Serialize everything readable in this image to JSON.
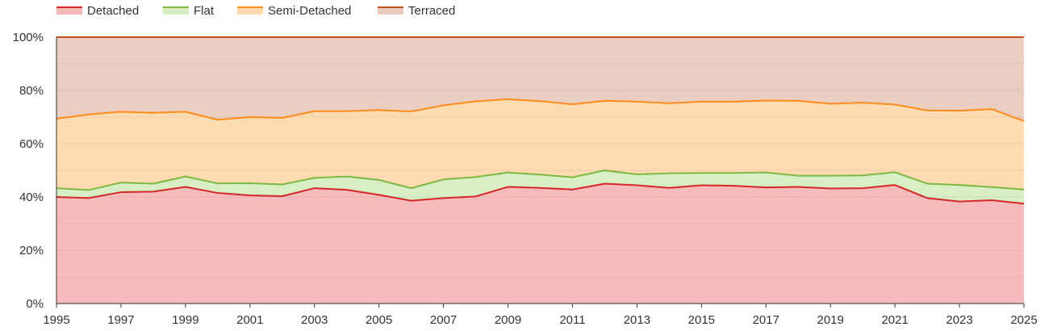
{
  "chart_data": {
    "type": "area",
    "stacked": true,
    "normalized_percent": true,
    "x": [
      1995,
      1996,
      1997,
      1998,
      1999,
      2000,
      2001,
      2002,
      2003,
      2004,
      2005,
      2006,
      2007,
      2008,
      2009,
      2010,
      2011,
      2012,
      2013,
      2014,
      2015,
      2016,
      2017,
      2018,
      2019,
      2020,
      2021,
      2022,
      2023,
      2024,
      2025
    ],
    "x_ticks": [
      "1995",
      "1997",
      "1999",
      "2001",
      "2003",
      "2005",
      "2007",
      "2009",
      "2011",
      "2013",
      "2015",
      "2017",
      "2019",
      "2021",
      "2023",
      "2025"
    ],
    "y_ticks": [
      "0%",
      "20%",
      "40%",
      "60%",
      "80%",
      "100%"
    ],
    "ylim": [
      0,
      100
    ],
    "xlim": [
      1995,
      2025
    ],
    "grid": true,
    "legend_position": "top-left",
    "title": "",
    "xlabel": "",
    "ylabel": "",
    "series": [
      {
        "name": "Detached",
        "line_color": "#d62728",
        "fill_color": "#f5b8b9",
        "values": [
          40.0,
          39.6,
          41.8,
          42.0,
          43.8,
          41.5,
          40.6,
          40.3,
          43.3,
          42.7,
          40.8,
          38.6,
          39.6,
          40.2,
          43.8,
          43.4,
          42.8,
          45.0,
          44.4,
          43.4,
          44.4,
          44.2,
          43.6,
          43.8,
          43.2,
          43.3,
          44.5,
          39.6,
          38.3,
          38.8,
          37.5
        ]
      },
      {
        "name": "Flat",
        "line_color": "#7cb842",
        "fill_color": "#d6edc2",
        "values": [
          3.3,
          3.0,
          3.6,
          3.0,
          3.9,
          3.6,
          4.6,
          4.4,
          3.9,
          5.0,
          5.6,
          4.7,
          7.0,
          7.3,
          5.4,
          5.0,
          4.6,
          5.0,
          4.1,
          5.5,
          4.6,
          4.8,
          5.6,
          4.2,
          4.8,
          4.8,
          4.8,
          5.4,
          6.2,
          4.9,
          5.3
        ]
      },
      {
        "name": "Semi-Detached",
        "line_color": "#ff8c1a",
        "fill_color": "#ffd9ad",
        "values": [
          26.1,
          28.4,
          26.6,
          26.6,
          24.3,
          23.9,
          24.8,
          25.0,
          25.0,
          24.5,
          26.2,
          28.8,
          27.8,
          28.4,
          27.5,
          27.6,
          27.4,
          26.1,
          27.3,
          26.3,
          26.8,
          26.8,
          27.0,
          28.1,
          27.0,
          27.3,
          25.4,
          27.5,
          27.9,
          29.3,
          25.7
        ]
      },
      {
        "name": "Terraced",
        "line_color": "#c1501e",
        "fill_color": "#e8cbbe",
        "values": [
          30.6,
          29.0,
          28.0,
          28.4,
          28.0,
          31.0,
          30.0,
          30.3,
          27.8,
          27.8,
          27.4,
          27.9,
          25.6,
          24.1,
          23.3,
          24.0,
          25.2,
          23.9,
          24.2,
          24.8,
          24.2,
          24.2,
          23.8,
          23.9,
          25.0,
          24.6,
          25.3,
          27.5,
          27.6,
          27.0,
          31.5
        ]
      }
    ]
  }
}
